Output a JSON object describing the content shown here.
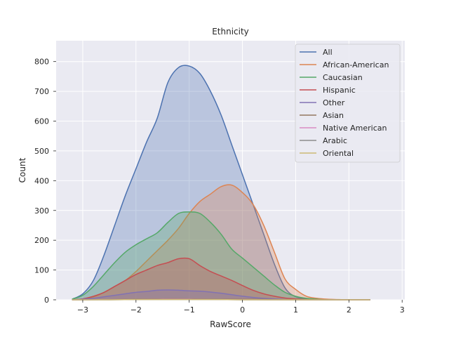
{
  "chart_data": {
    "type": "area",
    "title": "Ethnicity",
    "xlabel": "RawScore",
    "ylabel": "Count",
    "xlim": [
      -3.5,
      3.05
    ],
    "ylim": [
      0,
      870
    ],
    "x_ticks": [
      -3,
      -2,
      -1,
      0,
      1,
      2,
      3
    ],
    "x_tick_labels": [
      "−3",
      "−2",
      "−1",
      "0",
      "1",
      "2",
      "3"
    ],
    "y_ticks": [
      0,
      100,
      200,
      300,
      400,
      500,
      600,
      700,
      800
    ],
    "y_tick_labels": [
      "0",
      "100",
      "200",
      "300",
      "400",
      "500",
      "600",
      "700",
      "800"
    ],
    "grid": true,
    "legend_position": "top-right",
    "background_color": "#eaeaf2",
    "grid_color": "#ffffff",
    "series": [
      {
        "name": "All",
        "color": "#4c72b0",
        "fill_opacity": 0.3,
        "x": [
          -3.2,
          -3.0,
          -2.8,
          -2.6,
          -2.4,
          -2.2,
          -2.0,
          -1.8,
          -1.6,
          -1.4,
          -1.2,
          -1.0,
          -0.8,
          -0.6,
          -0.4,
          -0.2,
          0.0,
          0.2,
          0.4,
          0.6,
          0.8,
          1.0,
          1.2,
          1.4,
          1.6,
          1.8,
          2.0,
          2.2,
          2.4
        ],
        "y": [
          2,
          20,
          65,
          150,
          250,
          350,
          440,
          530,
          610,
          730,
          780,
          785,
          760,
          700,
          620,
          520,
          420,
          320,
          220,
          120,
          40,
          10,
          3,
          0,
          0,
          0,
          0,
          0,
          0
        ]
      },
      {
        "name": "African-American",
        "color": "#dd8452",
        "fill_opacity": 0.3,
        "x": [
          -3.2,
          -3.0,
          -2.8,
          -2.6,
          -2.4,
          -2.2,
          -2.0,
          -1.8,
          -1.6,
          -1.4,
          -1.2,
          -1.0,
          -0.8,
          -0.6,
          -0.4,
          -0.2,
          0.0,
          0.2,
          0.4,
          0.6,
          0.8,
          1.0,
          1.2,
          1.4,
          1.6,
          1.8,
          2.0,
          2.2,
          2.4
        ],
        "y": [
          0,
          3,
          10,
          25,
          45,
          65,
          95,
          130,
          165,
          200,
          240,
          290,
          330,
          355,
          380,
          385,
          360,
          320,
          250,
          160,
          70,
          35,
          12,
          5,
          2,
          1,
          0,
          0,
          0
        ]
      },
      {
        "name": "Caucasian",
        "color": "#55a868",
        "fill_opacity": 0.3,
        "x": [
          -3.2,
          -3.0,
          -2.8,
          -2.6,
          -2.4,
          -2.2,
          -2.0,
          -1.8,
          -1.6,
          -1.4,
          -1.2,
          -1.0,
          -0.8,
          -0.6,
          -0.4,
          -0.2,
          0.0,
          0.2,
          0.4,
          0.6,
          0.8,
          1.0,
          1.2,
          1.4,
          1.6,
          1.8,
          2.0,
          2.2,
          2.4
        ],
        "y": [
          2,
          15,
          45,
          85,
          125,
          160,
          185,
          205,
          225,
          260,
          290,
          295,
          290,
          260,
          220,
          170,
          140,
          110,
          80,
          50,
          25,
          12,
          5,
          2,
          0,
          0,
          0,
          0,
          0
        ]
      },
      {
        "name": "Hispanic",
        "color": "#c44e52",
        "fill_opacity": 0.3,
        "x": [
          -3.2,
          -3.0,
          -2.8,
          -2.6,
          -2.4,
          -2.2,
          -2.0,
          -1.8,
          -1.6,
          -1.4,
          -1.2,
          -1.0,
          -0.8,
          -0.6,
          -0.4,
          -0.2,
          0.0,
          0.2,
          0.4,
          0.6,
          0.8,
          1.0,
          1.2,
          1.4,
          1.6,
          1.8,
          2.0,
          2.2,
          2.4
        ],
        "y": [
          0,
          3,
          12,
          25,
          45,
          65,
          85,
          100,
          115,
          125,
          138,
          138,
          115,
          95,
          80,
          65,
          48,
          32,
          20,
          12,
          6,
          3,
          1,
          0,
          0,
          0,
          0,
          0,
          0
        ]
      },
      {
        "name": "Other",
        "color": "#8172b3",
        "fill_opacity": 0.3,
        "x": [
          -3.2,
          -3.0,
          -2.8,
          -2.6,
          -2.4,
          -2.2,
          -2.0,
          -1.8,
          -1.6,
          -1.4,
          -1.2,
          -1.0,
          -0.8,
          -0.6,
          -0.4,
          -0.2,
          0.0,
          0.2,
          0.4,
          0.6,
          0.8,
          1.0,
          1.2,
          1.4,
          1.6,
          1.8,
          2.0,
          2.2,
          2.4
        ],
        "y": [
          0,
          2,
          5,
          10,
          15,
          20,
          25,
          28,
          32,
          33,
          32,
          30,
          29,
          26,
          22,
          17,
          12,
          8,
          5,
          3,
          1,
          0,
          0,
          0,
          0,
          0,
          0,
          0,
          0
        ]
      },
      {
        "name": "Asian",
        "color": "#937860",
        "fill_opacity": 0.3,
        "x": [
          -3.2,
          -3.0,
          -2.5,
          -2.0,
          -1.5,
          -1.0,
          -0.5,
          0.0,
          0.5,
          1.0,
          1.5,
          2.0,
          2.4
        ],
        "y": [
          0,
          0,
          1,
          2,
          3,
          3,
          2,
          2,
          1,
          0,
          0,
          0,
          0
        ]
      },
      {
        "name": "Native American",
        "color": "#da8bc3",
        "fill_opacity": 0.3,
        "x": [
          -3.2,
          -3.0,
          -2.5,
          -2.0,
          -1.5,
          -1.0,
          -0.5,
          0.0,
          0.5,
          1.0,
          1.5,
          2.0,
          2.4
        ],
        "y": [
          0,
          0,
          1,
          1,
          2,
          2,
          1,
          1,
          0,
          0,
          0,
          0,
          0
        ]
      },
      {
        "name": "Arabic",
        "color": "#8c8c8c",
        "fill_opacity": 0.3,
        "x": [
          -3.2,
          -3.0,
          -2.5,
          -2.0,
          -1.5,
          -1.0,
          -0.5,
          0.0,
          0.5,
          1.0,
          1.5,
          2.0,
          2.4
        ],
        "y": [
          0,
          0,
          0,
          1,
          1,
          1,
          1,
          0,
          0,
          0,
          0,
          0,
          0
        ]
      },
      {
        "name": "Oriental",
        "color": "#ccb974",
        "fill_opacity": 0.3,
        "x": [
          -3.2,
          -3.0,
          -2.5,
          -2.0,
          -1.5,
          -1.0,
          -0.5,
          0.0,
          0.5,
          1.0,
          1.5,
          2.0,
          2.4
        ],
        "y": [
          0,
          0,
          0,
          1,
          1,
          1,
          1,
          0,
          0,
          0,
          0,
          0,
          0
        ]
      }
    ]
  }
}
